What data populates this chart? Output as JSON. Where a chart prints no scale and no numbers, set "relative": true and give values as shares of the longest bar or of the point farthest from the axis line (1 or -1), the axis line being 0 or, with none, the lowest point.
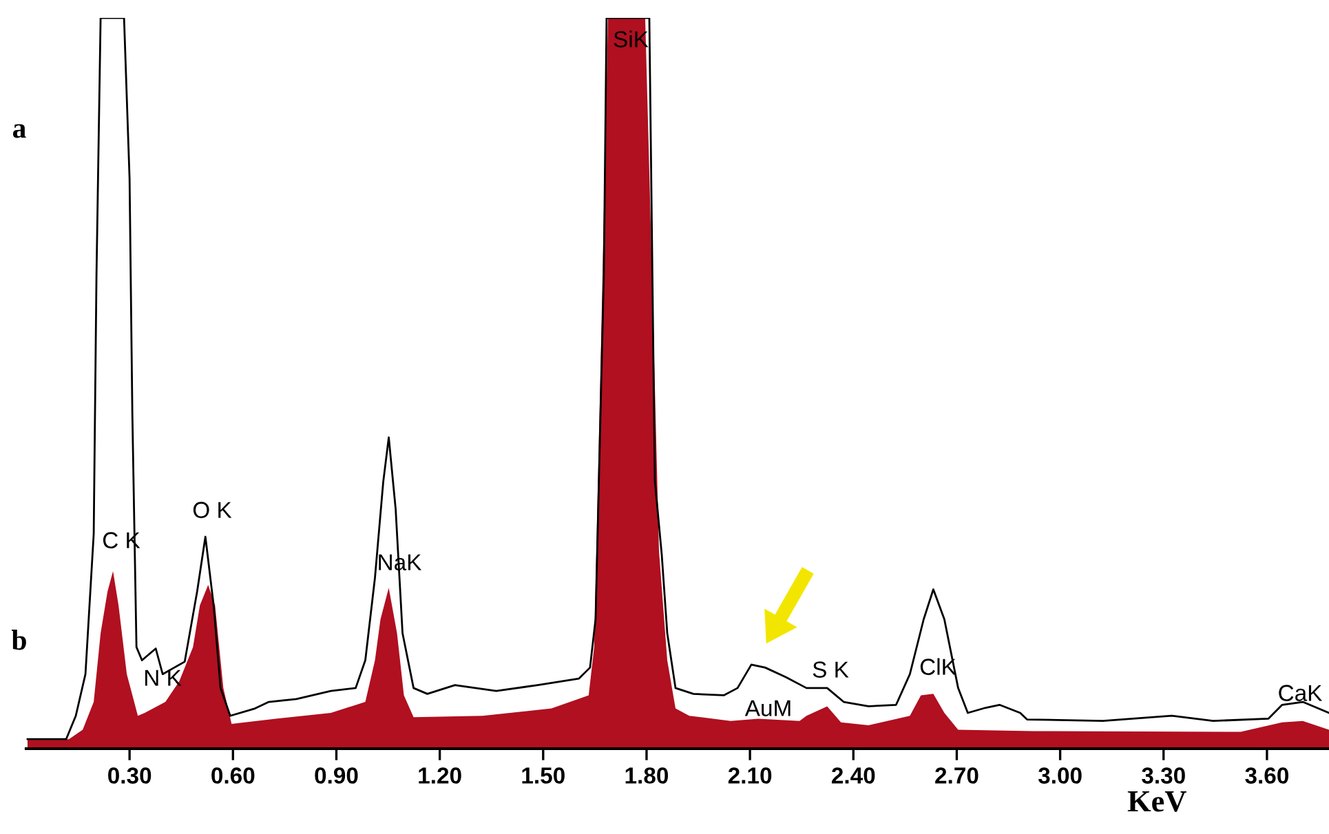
{
  "chart_data": {
    "type": "area",
    "relative": true,
    "xlabel": "KeV",
    "xlim": [
      0,
      3.78
    ],
    "xticks": [
      {
        "value": 0.3,
        "label": "0.30"
      },
      {
        "value": 0.6,
        "label": "0.60"
      },
      {
        "value": 0.9,
        "label": "0.90"
      },
      {
        "value": 1.2,
        "label": "1.20"
      },
      {
        "value": 1.5,
        "label": "1.50"
      },
      {
        "value": 1.8,
        "label": "1.80"
      },
      {
        "value": 2.1,
        "label": "2.10"
      },
      {
        "value": 2.4,
        "label": "2.40"
      },
      {
        "value": 2.7,
        "label": "2.70"
      },
      {
        "value": 3.0,
        "label": "3.00"
      },
      {
        "value": 3.3,
        "label": "3.30"
      },
      {
        "value": 3.6,
        "label": "3.60"
      }
    ],
    "tick_labels": "x",
    "grid": false,
    "legend": false,
    "series": [
      {
        "type": "line",
        "color": "#000000",
        "x": [
          0.004,
          0.116,
          0.144,
          0.172,
          0.196,
          0.204,
          0.216,
          0.284,
          0.3,
          0.308,
          0.32,
          0.336,
          0.376,
          0.396,
          0.46,
          0.496,
          0.52,
          0.544,
          0.564,
          0.592,
          0.664,
          0.704,
          0.784,
          0.884,
          0.956,
          0.984,
          1.012,
          1.036,
          1.052,
          1.072,
          1.092,
          1.124,
          1.164,
          1.244,
          1.364,
          1.484,
          1.604,
          1.636,
          1.652,
          1.676,
          1.684,
          1.808,
          1.824,
          1.844,
          1.86,
          1.884,
          1.936,
          2.024,
          2.064,
          2.104,
          2.144,
          2.204,
          2.264,
          2.324,
          2.372,
          2.444,
          2.524,
          2.564,
          2.604,
          2.632,
          2.664,
          2.704,
          2.732,
          2.784,
          2.824,
          2.884,
          2.904,
          3.124,
          3.324,
          3.444,
          3.604,
          3.644,
          3.704,
          3.78
        ],
        "values": [
          0.013,
          0.013,
          0.045,
          0.102,
          0.294,
          0.648,
          1,
          1,
          0.78,
          0.46,
          0.139,
          0.121,
          0.137,
          0.102,
          0.119,
          0.215,
          0.29,
          0.196,
          0.083,
          0.045,
          0.055,
          0.064,
          0.068,
          0.079,
          0.083,
          0.121,
          0.234,
          0.365,
          0.426,
          0.328,
          0.158,
          0.083,
          0.075,
          0.087,
          0.079,
          0.087,
          0.096,
          0.111,
          0.177,
          0.648,
          1,
          1,
          0.367,
          0.266,
          0.158,
          0.083,
          0.075,
          0.073,
          0.083,
          0.115,
          0.111,
          0.098,
          0.083,
          0.083,
          0.064,
          0.058,
          0.06,
          0.102,
          0.177,
          0.218,
          0.177,
          0.083,
          0.049,
          0.056,
          0.06,
          0.049,
          0.04,
          0.038,
          0.045,
          0.038,
          0.041,
          0.06,
          0.064,
          0.049
        ]
      },
      {
        "color": "#b01020",
        "x": [
          0.004,
          0.124,
          0.164,
          0.196,
          0.216,
          0.236,
          0.252,
          0.268,
          0.292,
          0.324,
          0.344,
          0.404,
          0.444,
          0.484,
          0.504,
          0.528,
          0.548,
          0.572,
          0.596,
          0.724,
          0.884,
          0.984,
          1.012,
          1.028,
          1.052,
          1.076,
          1.096,
          1.124,
          1.324,
          1.524,
          1.632,
          1.648,
          1.668,
          1.688,
          1.796,
          1.816,
          1.836,
          1.86,
          1.884,
          1.924,
          2.044,
          2.124,
          2.244,
          2.264,
          2.324,
          2.364,
          2.444,
          2.564,
          2.596,
          2.632,
          2.664,
          2.704,
          2.924,
          3.524,
          3.644,
          3.704,
          3.78
        ],
        "values": [
          0.013,
          0.013,
          0.026,
          0.064,
          0.158,
          0.215,
          0.243,
          0.196,
          0.102,
          0.045,
          0.049,
          0.064,
          0.092,
          0.139,
          0.196,
          0.224,
          0.196,
          0.083,
          0.034,
          0.041,
          0.049,
          0.064,
          0.121,
          0.177,
          0.22,
          0.158,
          0.073,
          0.043,
          0.045,
          0.055,
          0.073,
          0.139,
          0.554,
          1,
          1,
          0.648,
          0.271,
          0.121,
          0.055,
          0.045,
          0.038,
          0.041,
          0.038,
          0.045,
          0.058,
          0.036,
          0.032,
          0.045,
          0.073,
          0.075,
          0.049,
          0.026,
          0.024,
          0.023,
          0.036,
          0.038,
          0.026
        ]
      }
    ],
    "annotations": [
      "a",
      "b",
      "C K",
      "N K",
      "O K",
      "NaK",
      "SiK",
      "AuM",
      "S K",
      "ClK",
      "CaK"
    ]
  }
}
